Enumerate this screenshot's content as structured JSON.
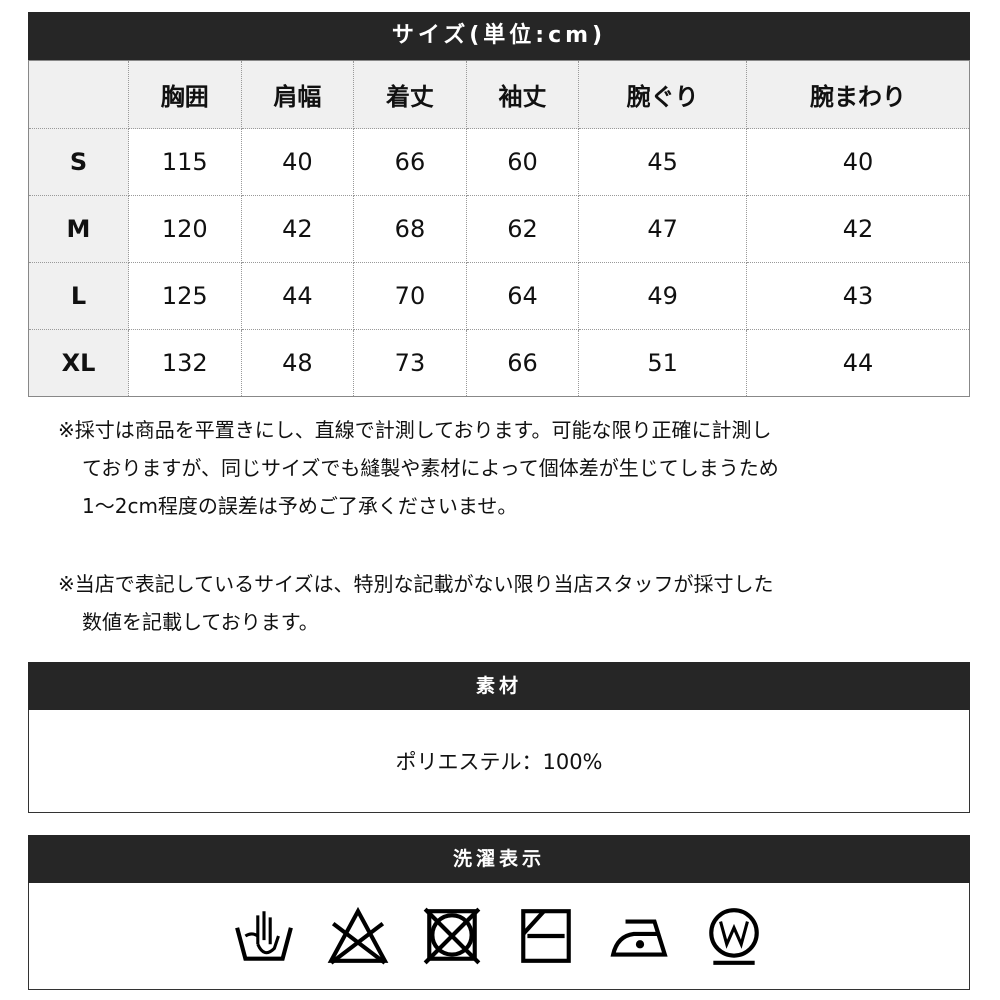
{
  "size_table": {
    "title": "サイズ(単位:cm)",
    "columns": [
      "",
      "胸囲",
      "肩幅",
      "着丈",
      "袖丈",
      "腕ぐり",
      "腕まわり"
    ],
    "rows": [
      [
        "S",
        "115",
        "40",
        "66",
        "60",
        "45",
        "40"
      ],
      [
        "M",
        "120",
        "42",
        "68",
        "62",
        "47",
        "42"
      ],
      [
        "L",
        "125",
        "44",
        "70",
        "64",
        "49",
        "43"
      ],
      [
        "XL",
        "132",
        "48",
        "73",
        "66",
        "51",
        "44"
      ]
    ]
  },
  "notes": {
    "note1_line1": "※採寸は商品を平置きにし、直線で計測しております。可能な限り正確に計測し",
    "note1_line2": "ておりますが、同じサイズでも縫製や素材によって個体差が生じてしまうため",
    "note1_line3": "1～2cm程度の誤差は予めご了承くださいませ。",
    "note2_line1": "※当店で表記しているサイズは、特別な記載がない限り当店スタッフが採寸した",
    "note2_line2": "数値を記載しております。"
  },
  "material": {
    "title": "素材",
    "value": "ポリエステル：100%"
  },
  "washing": {
    "title": "洗濯表示",
    "icons": [
      "hand-wash-icon",
      "no-bleach-icon",
      "no-tumble-dry-icon",
      "line-dry-shade-icon",
      "iron-low-icon",
      "wet-clean-icon"
    ]
  },
  "colors": {
    "header_bg": "#262626",
    "cell_gray": "#f0f0f0"
  }
}
